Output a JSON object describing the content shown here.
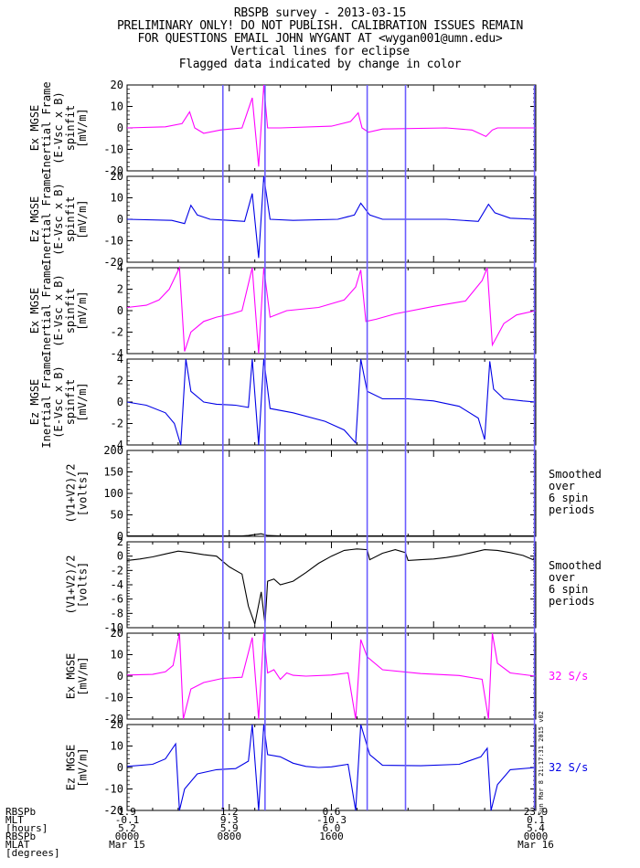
{
  "header": {
    "title": "RBSPB survey - 2013-03-15",
    "line2": "PRELIMINARY ONLY! DO NOT PUBLISH. CALIBRATION ISSUES REMAIN",
    "line3": "FOR QUESTIONS EMAIL JOHN WYGANT AT <wygan001@umn.edu>",
    "line4": "Vertical lines for eclipse",
    "line5": "Flagged data indicated by change in color"
  },
  "colors": {
    "magenta": "#ff00ff",
    "blue": "#0000e6",
    "black": "#000000",
    "eclipse": "#6a5cff"
  },
  "side_stamp": "Sun Mar 8 21:17:31 2015 v02",
  "eclipse_lines_hours": [
    7.5,
    10.8,
    18.8,
    21.8,
    31.9
  ],
  "chart_data": {
    "type": "line",
    "x_range_hours": [
      0,
      32
    ],
    "panels": [
      {
        "ylabel": [
          "Ex MGSE",
          "Inertial Frame",
          "(E-Vsc x B)",
          "spinfit",
          "[mV/m]"
        ],
        "ylim": [
          -20,
          20
        ],
        "yticks": [
          -20,
          -10,
          0,
          10,
          20
        ],
        "color": "magenta",
        "grid": false,
        "right_label": [],
        "series": [
          {
            "x": [
              0,
              3,
              4.3,
              4.9,
              5.3,
              6,
              7.3,
              9,
              9.8,
              10.3,
              10.7,
              11,
              12,
              16,
              17.5,
              18.1,
              18.4,
              18.9,
              20,
              25,
              27,
              28.1,
              28.6,
              29,
              30,
              32
            ],
            "y": [
              0,
              0.5,
              2,
              7.5,
              0,
              -2.5,
              -1,
              0,
              14,
              -18,
              20,
              0,
              0,
              0.8,
              3,
              7,
              0,
              -2,
              -0.5,
              0,
              -1,
              -4,
              -1,
              0,
              0,
              0
            ]
          }
        ]
      },
      {
        "ylabel": [
          "Ez MGSE",
          "Inertial Frame",
          "(E-Vsc x B)",
          "spinfit",
          "[mV/m]"
        ],
        "ylim": [
          -20,
          20
        ],
        "yticks": [
          -20,
          -10,
          0,
          10,
          20
        ],
        "color": "blue",
        "grid": false,
        "right_label": [],
        "series": [
          {
            "x": [
              0,
              3.5,
              4.5,
              5,
              5.5,
              6.5,
              8,
              9.2,
              9.8,
              10.3,
              10.7,
              11.2,
              13,
              16.5,
              17.8,
              18.3,
              19,
              20,
              25,
              27.5,
              28.3,
              28.8,
              30,
              32
            ],
            "y": [
              0,
              -0.5,
              -2,
              6.5,
              2,
              0,
              -0.5,
              -1,
              12,
              -18,
              20,
              0,
              -0.5,
              0,
              2,
              7.5,
              2,
              0,
              0,
              -1,
              7,
              3,
              0.5,
              0
            ]
          }
        ]
      },
      {
        "ylabel": [
          "Ex MGSE",
          "Inertial Frame",
          "(E-Vsc x B)",
          "spinfit",
          "[mV/m]"
        ],
        "ylim": [
          -4,
          4
        ],
        "yticks": [
          -4,
          -2,
          0,
          2,
          4
        ],
        "color": "magenta",
        "grid": false,
        "right_label": [],
        "series": [
          {
            "x": [
              0,
              1.5,
              2.5,
              3.3,
              4.1,
              4.5,
              5,
              6,
              7,
              8.2,
              9,
              9.8,
              10.3,
              10.7,
              11.2,
              12.5,
              15,
              17,
              17.9,
              18.3,
              18.7,
              19.5,
              21,
              24,
              26.5,
              27.8,
              28.2,
              28.6,
              29.5,
              30.5,
              32
            ],
            "y": [
              0.3,
              0.5,
              1,
              2,
              4,
              -3.8,
              -2,
              -1,
              -0.6,
              -0.3,
              0,
              4,
              -4,
              4,
              -0.6,
              0,
              0.3,
              1,
              2.2,
              3.8,
              -1,
              -0.8,
              -0.3,
              0.4,
              0.9,
              2.8,
              4,
              -3.2,
              -1.2,
              -0.4,
              0
            ]
          }
        ]
      },
      {
        "ylabel": [
          "Ez MGSE",
          "Inertial Frame",
          "(E-Vsc x B)",
          "spinfit",
          "[mV/m]"
        ],
        "ylim": [
          -4,
          4
        ],
        "yticks": [
          -4,
          -2,
          0,
          2,
          4
        ],
        "color": "blue",
        "grid": false,
        "right_label": [],
        "series": [
          {
            "x": [
              0,
              1.5,
              3,
              3.7,
              4.2,
              4.6,
              5,
              6,
              7,
              8.5,
              9.5,
              9.8,
              10.3,
              10.7,
              11.2,
              13,
              15.5,
              17,
              17.9,
              18.3,
              18.8,
              20,
              22,
              24,
              26,
              27.5,
              28,
              28.4,
              28.7,
              29.5,
              31,
              32
            ],
            "y": [
              0,
              -0.3,
              -1,
              -2,
              -4,
              4,
              1,
              0,
              -0.2,
              -0.3,
              -0.5,
              4,
              -4,
              4,
              -0.6,
              -1,
              -1.8,
              -2.6,
              -3.8,
              4,
              1,
              0.3,
              0.3,
              0.1,
              -0.4,
              -1.5,
              -3.5,
              3.8,
              1.2,
              0.3,
              0.1,
              0
            ]
          }
        ]
      },
      {
        "ylabel": [
          "(V1+V2)/2",
          "[volts]"
        ],
        "ylim": [
          0,
          200
        ],
        "yticks": [
          0,
          50,
          100,
          150,
          200
        ],
        "color": "black",
        "grid": false,
        "right_label": [
          "Smoothed",
          "over",
          "6 spin",
          "periods"
        ],
        "series": [
          {
            "x": [
              0,
              8,
              9,
              9.5,
              10,
              10.5,
              11,
              12,
              32
            ],
            "y": [
              1,
              1,
              1,
              2,
              4,
              6,
              2,
              1,
              1
            ]
          }
        ]
      },
      {
        "ylabel": [
          "(V1+V2)/2",
          "[volts]"
        ],
        "ylim": [
          -10,
          2
        ],
        "yticks": [
          -10,
          -8,
          -6,
          -4,
          -2,
          0,
          2
        ],
        "color": "black",
        "grid": false,
        "right_label": [
          "Smoothed",
          "over",
          "6 spin",
          "periods"
        ],
        "series": [
          {
            "x": [
              0,
              1,
              2,
              3,
              4,
              5,
              6,
              7,
              8,
              9,
              9.5,
              10,
              10.5,
              10.8,
              11,
              11.5,
              12,
              13,
              14,
              15,
              16,
              17,
              18,
              18.8,
              19,
              20,
              21,
              21.8,
              22,
              23,
              24,
              25,
              26,
              27,
              28,
              29,
              30,
              31,
              31.8,
              32
            ],
            "y": [
              -0.6,
              -0.4,
              -0.1,
              0.3,
              0.7,
              0.5,
              0.2,
              0,
              -1.5,
              -2.5,
              -7,
              -9.5,
              -5,
              -9.5,
              -3.5,
              -3.2,
              -4,
              -3.5,
              -2.3,
              -1,
              0,
              0.8,
              1,
              0.9,
              -0.5,
              0.4,
              0.9,
              0.5,
              -0.6,
              -0.5,
              -0.4,
              -0.2,
              0.1,
              0.5,
              0.9,
              0.8,
              0.5,
              0.1,
              -0.5,
              0.5
            ]
          }
        ]
      },
      {
        "ylabel": [
          "Ex MGSE",
          "[mV/m]"
        ],
        "ylim": [
          -20,
          20
        ],
        "yticks": [
          -20,
          -10,
          0,
          10,
          20
        ],
        "color": "magenta",
        "grid": false,
        "right_label": [
          "32 S/s"
        ],
        "series": [
          {
            "x": [
              0,
              2,
              3,
              3.6,
              4.1,
              4.4,
              5,
              6,
              7.5,
              9,
              9.8,
              10.3,
              10.7,
              11,
              11.5,
              12,
              12.5,
              13,
              14,
              16,
              17.3,
              17.9,
              18.3,
              18.8,
              20,
              23,
              26,
              27.8,
              28.3,
              28.6,
              29,
              30,
              32
            ],
            "y": [
              0.5,
              0.8,
              2,
              5,
              20,
              -20,
              -6,
              -3,
              -1,
              -0.5,
              18,
              -20,
              20,
              1.5,
              3,
              -1.5,
              1.5,
              0.4,
              0,
              0.5,
              1.5,
              -20,
              17,
              9,
              3,
              1.2,
              0.3,
              -1.5,
              -20,
              20,
              6,
              1.5,
              0
            ]
          }
        ]
      },
      {
        "ylabel": [
          "Ez MGSE",
          "[mV/m]"
        ],
        "ylim": [
          -20,
          20
        ],
        "yticks": [
          -20,
          -10,
          0,
          10,
          20
        ],
        "color": "blue",
        "grid": false,
        "right_label": [
          "32 S/s"
        ],
        "series": [
          {
            "x": [
              0,
              2,
              3,
              3.8,
              4.1,
              4.5,
              5.5,
              7,
              8.5,
              9.5,
              9.8,
              10.3,
              10.7,
              11,
              12,
              13,
              14,
              15,
              16,
              17.3,
              17.9,
              18.3,
              19,
              20,
              23,
              26,
              27.7,
              28.2,
              28.5,
              29,
              30,
              32
            ],
            "y": [
              0.5,
              1.5,
              4,
              11,
              -20,
              -10,
              -3,
              -1,
              -0.5,
              3,
              20,
              -20,
              20,
              6,
              5,
              2,
              0.5,
              0,
              0.3,
              1.5,
              -20,
              20,
              6,
              1,
              0.8,
              1.5,
              5,
              9,
              -20,
              -8,
              -1,
              0
            ]
          }
        ]
      }
    ],
    "x_axis": {
      "tick_hours": [
        0,
        8,
        16,
        32
      ],
      "row_labels": [
        "RBSPb",
        "MLT",
        "[hours]",
        "RBSPb",
        "MLAT",
        "[degrees]"
      ],
      "columns": [
        {
          "hour": 0,
          "rbspb": "1.9",
          "mlt": "-0.1",
          "hours": "5.2",
          "time": "0000",
          "date": "Mar 15"
        },
        {
          "hour": 8,
          "rbspb": "1.2",
          "mlt": "9.3",
          "hours": "5.9",
          "time": "0800",
          "date": ""
        },
        {
          "hour": 16,
          "rbspb": "0.6",
          "mlt": "-10.3",
          "hours": "6.0",
          "time": "1600",
          "date": ""
        },
        {
          "hour": 32,
          "rbspb": "23.9",
          "mlt": "0.1",
          "hours": "5.4",
          "time": "0000",
          "date": "Mar 16"
        }
      ]
    }
  }
}
